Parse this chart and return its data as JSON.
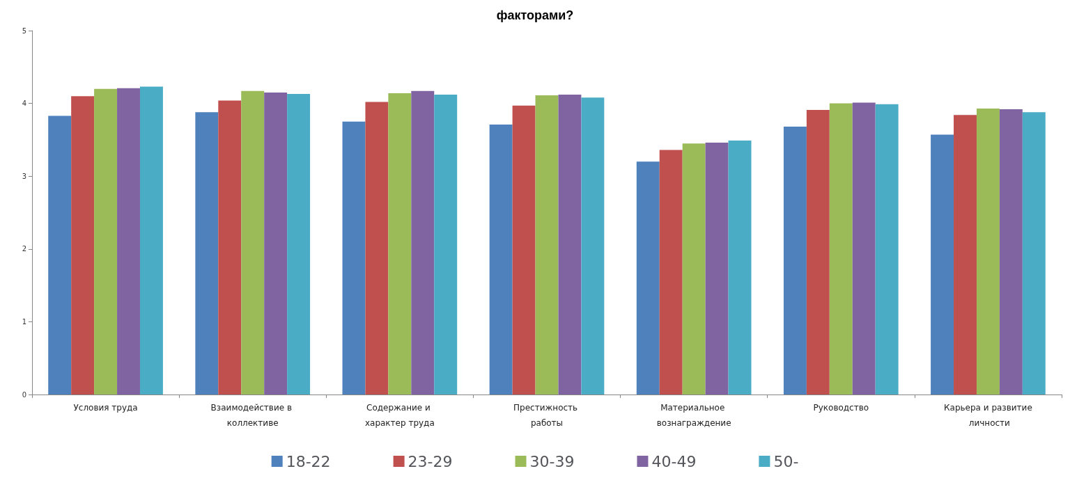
{
  "chart_data": {
    "type": "bar",
    "title": "факторами?",
    "categories": [
      "Условия труда",
      "Взаимодействие в коллективе",
      "Содержание и характер труда",
      "Престижность работы",
      "Материальное вознаграждение",
      "Руководство",
      "Карьера и развитие личности"
    ],
    "series": [
      {
        "name": "18-22",
        "color": "#4f81bd",
        "values": [
          3.83,
          3.88,
          3.75,
          3.71,
          3.2,
          3.68,
          3.57
        ]
      },
      {
        "name": "23-29",
        "color": "#c0504d",
        "values": [
          4.1,
          4.04,
          4.02,
          3.97,
          3.36,
          3.91,
          3.84
        ]
      },
      {
        "name": "30-39",
        "color": "#9bbb59",
        "values": [
          4.2,
          4.17,
          4.14,
          4.11,
          3.45,
          4.0,
          3.93
        ]
      },
      {
        "name": "40-49",
        "color": "#8064a2",
        "values": [
          4.21,
          4.15,
          4.17,
          4.12,
          3.46,
          4.01,
          3.92
        ]
      },
      {
        "name": "50-",
        "color": "#4bacc6",
        "values": [
          4.23,
          4.13,
          4.12,
          4.08,
          3.49,
          3.99,
          3.88
        ]
      }
    ],
    "ylim": [
      0,
      5
    ],
    "yticks": [
      0,
      1,
      2,
      3,
      4,
      5
    ],
    "grid": false,
    "legend": "bottom"
  }
}
